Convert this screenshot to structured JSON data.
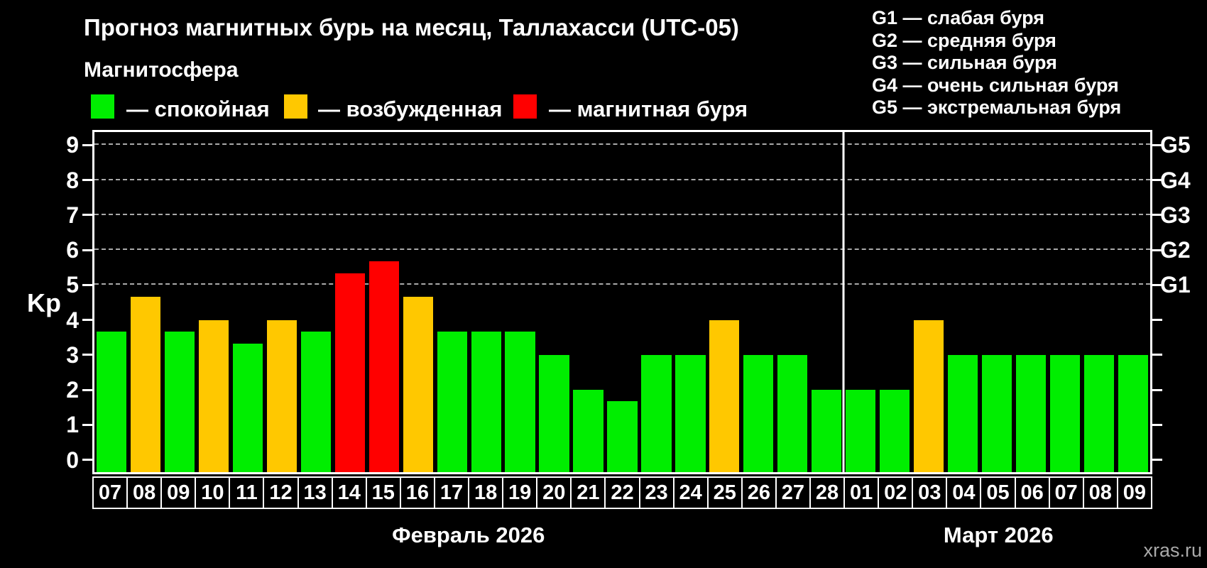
{
  "header": {
    "title": "Прогноз магнитных бурь на месяц, Таллахасси (UTC-05)",
    "legend_title": "Магнитосфера",
    "legend_items": [
      {
        "name": "quiet",
        "label": "— спокойная",
        "color": "#00ee00"
      },
      {
        "name": "excited",
        "label": "— возбужденная",
        "color": "#ffc800"
      },
      {
        "name": "storm",
        "label": "— магнитная буря",
        "color": "#ff0000"
      }
    ],
    "g_scale_legend": [
      "G1 — слабая буря",
      "G2 — средняя буря",
      "G3 — сильная буря",
      "G4 — очень сильная буря",
      "G5 — экстремальная буря"
    ]
  },
  "watermark": "xras.ru",
  "chart_data": {
    "type": "bar",
    "title": "Прогноз магнитных бурь на месяц, Таллахасси (UTC-05)",
    "ylabel": "Kp",
    "ylim": [
      -0.35,
      9.37
    ],
    "y_ticks": [
      0,
      1,
      2,
      3,
      4,
      5,
      6,
      7,
      8,
      9
    ],
    "gridlines_at": [
      5,
      6,
      7,
      8,
      9
    ],
    "grid_style": "dashed",
    "legend_position": "top",
    "right_axis_labels": [
      {
        "kp": 5,
        "label": "G1"
      },
      {
        "kp": 6,
        "label": "G2"
      },
      {
        "kp": 7,
        "label": "G3"
      },
      {
        "kp": 8,
        "label": "G4"
      },
      {
        "kp": 9,
        "label": "G5"
      }
    ],
    "months": [
      {
        "label": "Февраль 2026",
        "days": 22
      },
      {
        "label": "Март 2026",
        "days": 9
      }
    ],
    "categories": [
      "07",
      "08",
      "09",
      "10",
      "11",
      "12",
      "13",
      "14",
      "15",
      "16",
      "17",
      "18",
      "19",
      "20",
      "21",
      "22",
      "23",
      "24",
      "25",
      "26",
      "27",
      "28",
      "01",
      "02",
      "03",
      "04",
      "05",
      "06",
      "07",
      "08",
      "09"
    ],
    "values": [
      3.67,
      4.67,
      3.67,
      4.0,
      3.33,
      4.0,
      3.67,
      5.33,
      5.67,
      4.67,
      3.67,
      3.67,
      3.67,
      3.0,
      2.0,
      1.67,
      3.0,
      3.0,
      4.0,
      3.0,
      3.0,
      2.0,
      2.0,
      2.0,
      4.0,
      3.0,
      3.0,
      3.0,
      3.0,
      3.0,
      3.0
    ],
    "statuses": [
      "quiet",
      "excited",
      "quiet",
      "excited",
      "quiet",
      "excited",
      "quiet",
      "storm",
      "storm",
      "excited",
      "quiet",
      "quiet",
      "quiet",
      "quiet",
      "quiet",
      "quiet",
      "quiet",
      "quiet",
      "excited",
      "quiet",
      "quiet",
      "quiet",
      "quiet",
      "quiet",
      "excited",
      "quiet",
      "quiet",
      "quiet",
      "quiet",
      "quiet",
      "quiet"
    ],
    "colors_by_status": {
      "quiet": "#00ee00",
      "excited": "#ffc800",
      "storm": "#ff0000"
    }
  }
}
